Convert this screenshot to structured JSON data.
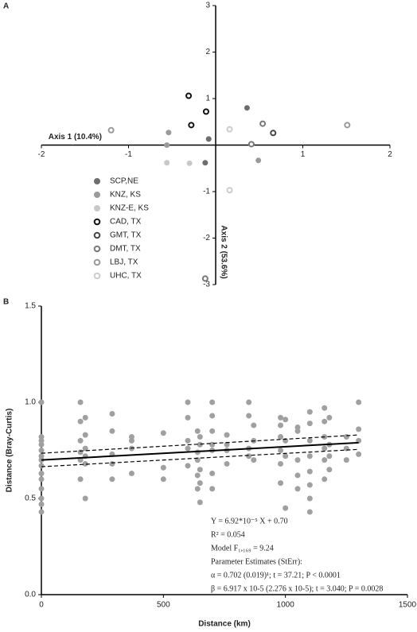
{
  "chart_data": [
    {
      "type": "scatter",
      "panel_label": "A",
      "x_label": "Axis 1 (10.4%)",
      "y_label": "Axis 2 (53.6%)",
      "axes_at_origin": true,
      "xlim": [
        -2,
        2
      ],
      "ylim": [
        -3,
        3
      ],
      "xticks": [
        -2,
        -1,
        1,
        2
      ],
      "yticks": [
        -3,
        -2,
        -1,
        1,
        2,
        3
      ],
      "series": [
        {
          "name": "SCP,NE",
          "color": "#6e6e6e",
          "marker": "filled",
          "x": [
            0.36,
            -0.12,
            -0.08
          ],
          "y": [
            0.8,
            -0.38,
            0.13
          ]
        },
        {
          "name": "KNZ, KS",
          "color": "#9a9a9a",
          "marker": "filled",
          "x": [
            -0.54,
            -0.56,
            0.49
          ],
          "y": [
            0.27,
            0.0,
            -0.33
          ]
        },
        {
          "name": "KNZ-E, KS",
          "color": "#c8c8c8",
          "marker": "filled",
          "x": [
            -0.56,
            -0.3
          ],
          "y": [
            -0.38,
            -0.39
          ]
        },
        {
          "name": "CAD, TX",
          "color": "#111111",
          "marker": "open",
          "x": [
            -0.31,
            -0.11,
            -0.28
          ],
          "y": [
            1.06,
            0.72,
            0.43
          ]
        },
        {
          "name": "GMT, TX",
          "color": "#444444",
          "marker": "open",
          "x": [
            0.66
          ],
          "y": [
            0.26
          ]
        },
        {
          "name": "DMT, TX",
          "color": "#777777",
          "marker": "open",
          "x": [
            0.54,
            0.41,
            -0.12
          ],
          "y": [
            0.46,
            0.02,
            -2.87
          ]
        },
        {
          "name": "LBJ, TX",
          "color": "#999999",
          "marker": "open",
          "x": [
            -1.2,
            1.51
          ],
          "y": [
            0.32,
            0.43
          ]
        },
        {
          "name": "UHC, TX",
          "color": "#cccccc",
          "marker": "open",
          "x": [
            0.16,
            0.16
          ],
          "y": [
            0.34,
            -0.97
          ]
        }
      ]
    },
    {
      "type": "scatter",
      "panel_label": "B",
      "x_label": "Distance (km)",
      "y_label": "Distance (Bray-Curtis)",
      "axes_at_origin": false,
      "xlim": [
        0,
        1500
      ],
      "ylim": [
        0,
        1.5
      ],
      "xticks": [
        0,
        500,
        1000,
        1500
      ],
      "yticks": [
        {
          "value": 0,
          "label": "0.0"
        },
        0.5,
        {
          "value": 1,
          "label": "1.0"
        },
        1.5
      ],
      "series": [
        {
          "color": "#a0a0a0",
          "marker": "filled",
          "x": [
            0,
            0,
            0,
            0,
            0,
            0,
            0,
            0,
            0,
            0,
            0,
            0,
            0,
            0,
            160,
            160,
            160,
            160,
            160,
            160,
            180,
            180,
            180,
            180,
            180,
            180,
            290,
            290,
            290,
            290,
            290,
            370,
            370,
            370,
            370,
            500,
            500,
            500,
            600,
            600,
            600,
            600,
            600,
            640,
            640,
            640,
            640,
            640,
            650,
            650,
            650,
            650,
            650,
            700,
            700,
            700,
            700,
            700,
            700,
            700,
            760,
            760,
            760,
            760,
            850,
            850,
            850,
            850,
            870,
            870,
            870,
            980,
            980,
            980,
            980,
            980,
            980,
            1000,
            1000,
            1000,
            1000,
            1050,
            1050,
            1050,
            1050,
            1050,
            1100,
            1100,
            1100,
            1100,
            1100,
            1100,
            1100,
            1100,
            1160,
            1160,
            1160,
            1160,
            1160,
            1160,
            1180,
            1180,
            1180,
            1180,
            1250,
            1250,
            1250,
            1300,
            1300,
            1300,
            1300
          ],
          "y": [
            0.43,
            0.47,
            0.5,
            0.55,
            0.6,
            0.63,
            0.67,
            0.7,
            0.72,
            0.75,
            0.78,
            0.8,
            0.82,
            1.0,
            0.6,
            0.7,
            0.74,
            0.8,
            0.9,
            1.0,
            0.5,
            0.68,
            0.72,
            0.76,
            0.83,
            0.92,
            0.6,
            0.68,
            0.73,
            0.85,
            0.94,
            0.63,
            0.76,
            0.8,
            0.82,
            0.6,
            0.66,
            0.84,
            0.67,
            0.76,
            0.8,
            0.92,
            1.0,
            0.55,
            0.62,
            0.7,
            0.74,
            0.85,
            0.48,
            0.58,
            0.65,
            0.78,
            0.82,
            0.55,
            0.63,
            0.75,
            0.78,
            0.85,
            0.93,
            1.0,
            0.68,
            0.75,
            0.78,
            0.83,
            0.72,
            0.76,
            0.93,
            1.0,
            0.7,
            0.8,
            0.88,
            0.58,
            0.68,
            0.75,
            0.82,
            0.88,
            0.92,
            0.45,
            0.72,
            0.8,
            0.91,
            0.55,
            0.62,
            0.7,
            0.85,
            0.87,
            0.43,
            0.5,
            0.57,
            0.64,
            0.72,
            0.8,
            0.89,
            0.95,
            0.6,
            0.7,
            0.76,
            0.82,
            0.9,
            0.97,
            0.65,
            0.72,
            0.78,
            0.92,
            0.7,
            0.76,
            0.82,
            0.73,
            0.8,
            0.86,
            1.0
          ]
        }
      ],
      "fit": {
        "x": [
          0,
          1300
        ],
        "y": [
          0.7,
          0.79
        ]
      },
      "ci_upper": {
        "x": [
          0,
          1300
        ],
        "y": [
          0.735,
          0.83
        ]
      },
      "ci_lower": {
        "x": [
          0,
          1300
        ],
        "y": [
          0.665,
          0.755
        ]
      },
      "annotations": [
        "Y = 6.92*10⁻⁵ X + 0.70",
        "R² = 0.054",
        "Model F₁,₁₆₉ = 9.24",
        "Parameter Estimates (StErr):",
        "α = 0.702 (0.019)¹; t = 37.21; P < 0.0001",
        "β = 6.917 x 10-5 (2.276 x 10-5); t = 3.040; P = 0.0028"
      ]
    }
  ]
}
